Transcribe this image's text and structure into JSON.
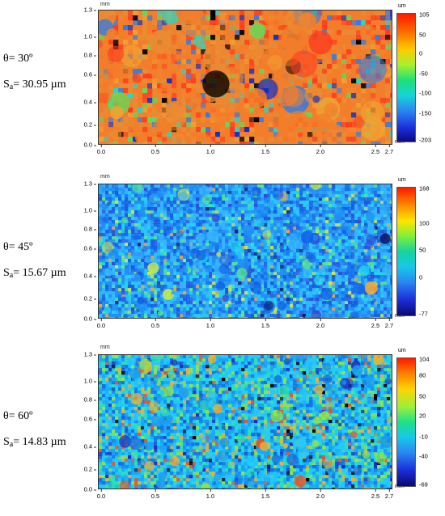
{
  "panels": [
    {
      "theta_label": "θ= 30º",
      "sa_prefix": "S",
      "sa_sub": "a",
      "sa_value": "= 30.95 µm",
      "y_unit": "mm",
      "x_unit": "mm",
      "bar_unit": "um",
      "y_ticks": [
        "1.3",
        "1.0",
        "0.8",
        "0.6",
        "0.4",
        "0.2",
        "0.0"
      ],
      "x_ticks": [
        "0.0",
        "0.5",
        "1.0",
        "1.5",
        "2.0",
        "2.5",
        "2.7"
      ],
      "bar_ticks": [
        "105",
        "50",
        "0",
        "-50",
        "-100",
        "-150",
        "-203"
      ],
      "palette": [
        "#ff3b1f",
        "#f37d2a",
        "#e98c33",
        "#f1a232",
        "#64d85a",
        "#23d8c8",
        "#2f7ce8",
        "#0c2ecb",
        "#000000"
      ],
      "weights": [
        14,
        40,
        22,
        6,
        4,
        3,
        5,
        3,
        3
      ]
    },
    {
      "theta_label": "θ= 45º",
      "sa_prefix": "S",
      "sa_sub": "a",
      "sa_value": "= 15.67 µm",
      "y_unit": "mm",
      "x_unit": "mm",
      "bar_unit": "um",
      "y_ticks": [
        "1.3",
        "1.0",
        "0.8",
        "0.6",
        "0.4",
        "0.2",
        "0.0"
      ],
      "x_ticks": [
        "0.0",
        "0.5",
        "1.0",
        "1.5",
        "2.0",
        "2.5",
        "2.7"
      ],
      "bar_ticks": [
        "168",
        "100",
        "50",
        "0",
        "-77"
      ],
      "palette": [
        "#35b4ff",
        "#1f8df5",
        "#1160e8",
        "#2e4fd9",
        "#22d3f0",
        "#57e88d",
        "#c9e84a",
        "#f0a53a",
        "#0a1a66"
      ],
      "weights": [
        22,
        26,
        16,
        10,
        12,
        6,
        3,
        1,
        1
      ]
    },
    {
      "theta_label": "θ= 60º",
      "sa_prefix": "S",
      "sa_sub": "a",
      "sa_value": "= 14.83 µm",
      "y_unit": "mm",
      "x_unit": "mm",
      "bar_unit": "um",
      "y_ticks": [
        "1.3",
        "1.0",
        "0.8",
        "0.6",
        "0.4",
        "0.2",
        "0.0"
      ],
      "x_ticks": [
        "0.0",
        "0.5",
        "1.0",
        "1.5",
        "2.0",
        "2.5",
        "2.7"
      ],
      "bar_ticks": [
        "104",
        "80",
        "50",
        "20",
        "-10",
        "-40",
        "-69"
      ],
      "palette": [
        "#22c8ff",
        "#1aa0f5",
        "#1470e6",
        "#33e0b0",
        "#8fe645",
        "#f0b030",
        "#f05020",
        "#1a2fc0",
        "#000000"
      ],
      "weights": [
        24,
        22,
        14,
        14,
        10,
        6,
        3,
        4,
        2
      ]
    }
  ]
}
